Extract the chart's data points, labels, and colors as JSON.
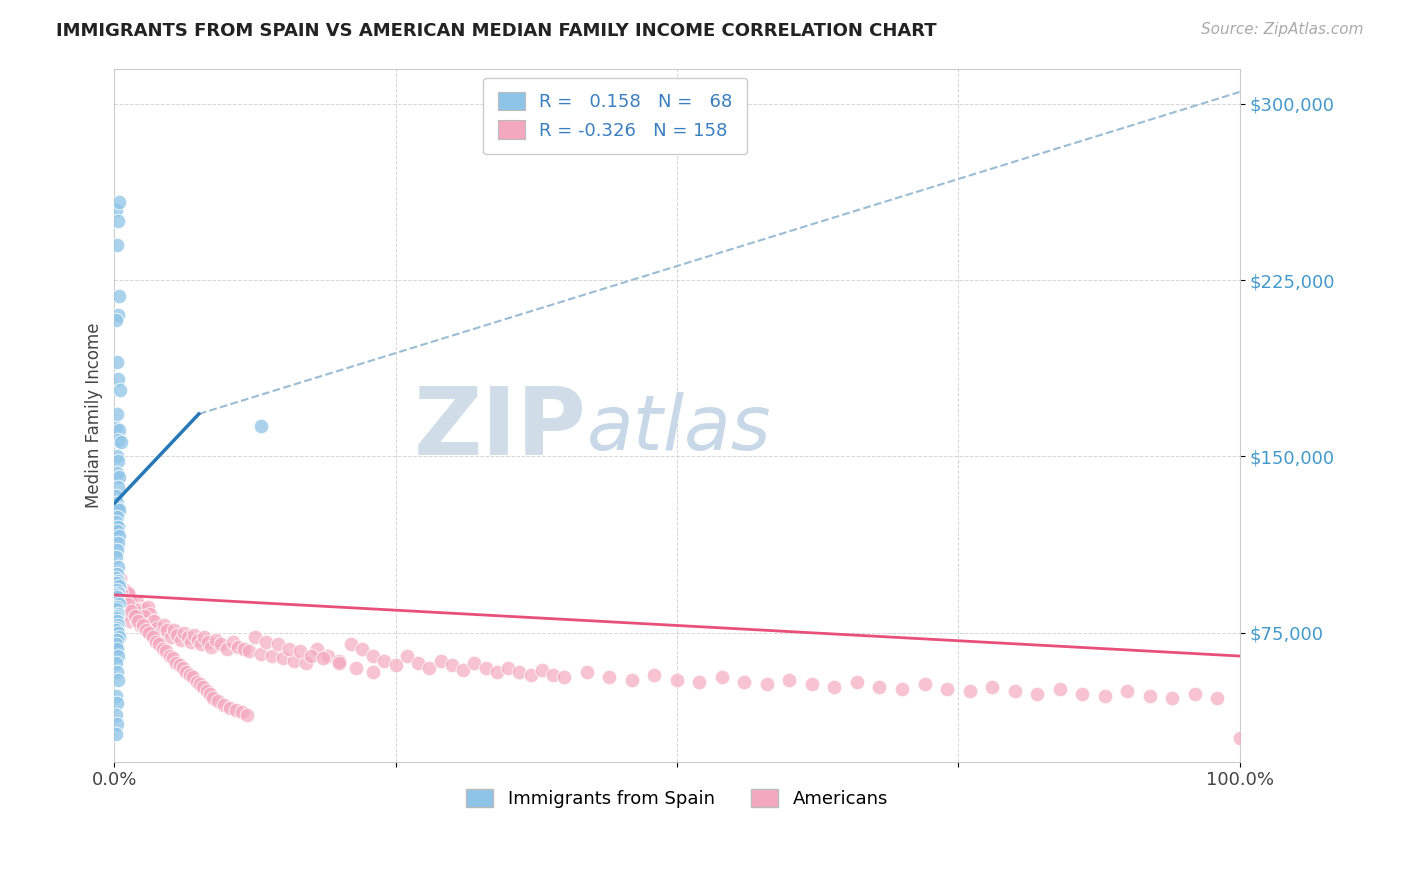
{
  "title": "IMMIGRANTS FROM SPAIN VS AMERICAN MEDIAN FAMILY INCOME CORRELATION CHART",
  "source": "Source: ZipAtlas.com",
  "ylabel": "Median Family Income",
  "yticks": [
    75000,
    150000,
    225000,
    300000
  ],
  "ytick_labels": [
    "$75,000",
    "$150,000",
    "$225,000",
    "$300,000"
  ],
  "ymin": 20000,
  "ymax": 315000,
  "xmin": 0.0,
  "xmax": 1.0,
  "blue_R": 0.158,
  "blue_N": 68,
  "pink_R": -0.326,
  "pink_N": 158,
  "blue_color": "#8ec4e8",
  "pink_color": "#f4a8c0",
  "blue_line_color": "#2878b8",
  "pink_line_color": "#e8507a",
  "dashed_line_color": "#9bbdd4",
  "watermark_zip": "ZIP",
  "watermark_atlas": "atlas",
  "watermark_color": "#dde8f0",
  "background_color": "#ffffff",
  "legend_text_color": "#3a7fbf",
  "blue_scatter_x": [
    0.001,
    0.003,
    0.004,
    0.002,
    0.004,
    0.003,
    0.001,
    0.002,
    0.003,
    0.005,
    0.002,
    0.001,
    0.004,
    0.003,
    0.006,
    0.002,
    0.003,
    0.002,
    0.004,
    0.003,
    0.001,
    0.002,
    0.003,
    0.004,
    0.002,
    0.001,
    0.003,
    0.002,
    0.004,
    0.003,
    0.002,
    0.001,
    0.003,
    0.002,
    0.001,
    0.003,
    0.002,
    0.004,
    0.002,
    0.003,
    0.001,
    0.002,
    0.003,
    0.004,
    0.002,
    0.001,
    0.003,
    0.002,
    0.001,
    0.002,
    0.003,
    0.002,
    0.001,
    0.003,
    0.004,
    0.002,
    0.001,
    0.002,
    0.003,
    0.001,
    0.002,
    0.003,
    0.001,
    0.002,
    0.001,
    0.13,
    0.002,
    0.001
  ],
  "blue_scatter_y": [
    255000,
    250000,
    258000,
    240000,
    218000,
    210000,
    208000,
    190000,
    183000,
    178000,
    168000,
    162000,
    161000,
    157000,
    156000,
    150000,
    148000,
    143000,
    141000,
    137000,
    133000,
    130000,
    128000,
    127000,
    124000,
    122000,
    120000,
    118000,
    116000,
    113000,
    110000,
    107000,
    103000,
    100000,
    98000,
    97000,
    96000,
    95000,
    93000,
    92000,
    91000,
    90000,
    88000,
    87000,
    86000,
    85000,
    83000,
    82000,
    81000,
    80000,
    78000,
    77000,
    76000,
    75000,
    73000,
    72000,
    70000,
    68000,
    65000,
    62000,
    58000,
    55000,
    48000,
    45000,
    40000,
    163000,
    36000,
    32000
  ],
  "pink_scatter_x": [
    0.001,
    0.003,
    0.005,
    0.007,
    0.009,
    0.011,
    0.013,
    0.015,
    0.002,
    0.004,
    0.006,
    0.008,
    0.01,
    0.012,
    0.014,
    0.016,
    0.018,
    0.02,
    0.022,
    0.024,
    0.026,
    0.028,
    0.03,
    0.032,
    0.034,
    0.036,
    0.003,
    0.005,
    0.008,
    0.011,
    0.014,
    0.017,
    0.02,
    0.023,
    0.026,
    0.029,
    0.032,
    0.035,
    0.038,
    0.041,
    0.044,
    0.047,
    0.05,
    0.053,
    0.056,
    0.059,
    0.062,
    0.065,
    0.068,
    0.071,
    0.074,
    0.077,
    0.08,
    0.083,
    0.086,
    0.09,
    0.095,
    0.1,
    0.105,
    0.11,
    0.115,
    0.12,
    0.13,
    0.14,
    0.15,
    0.16,
    0.17,
    0.18,
    0.19,
    0.2,
    0.21,
    0.22,
    0.23,
    0.24,
    0.25,
    0.26,
    0.27,
    0.28,
    0.29,
    0.3,
    0.31,
    0.32,
    0.33,
    0.34,
    0.35,
    0.36,
    0.37,
    0.38,
    0.39,
    0.4,
    0.42,
    0.44,
    0.46,
    0.48,
    0.5,
    0.52,
    0.54,
    0.56,
    0.58,
    0.6,
    0.62,
    0.64,
    0.66,
    0.68,
    0.7,
    0.72,
    0.74,
    0.76,
    0.78,
    0.8,
    0.82,
    0.84,
    0.86,
    0.88,
    0.9,
    0.92,
    0.94,
    0.96,
    0.98,
    1.0,
    0.004,
    0.006,
    0.009,
    0.012,
    0.015,
    0.018,
    0.021,
    0.025,
    0.028,
    0.031,
    0.034,
    0.037,
    0.04,
    0.043,
    0.046,
    0.049,
    0.052,
    0.055,
    0.058,
    0.061,
    0.064,
    0.067,
    0.07,
    0.073,
    0.076,
    0.079,
    0.082,
    0.085,
    0.088,
    0.092,
    0.097,
    0.103,
    0.108,
    0.113,
    0.118,
    0.125,
    0.135,
    0.145,
    0.155,
    0.165,
    0.175,
    0.185,
    0.2,
    0.215,
    0.23
  ],
  "pink_scatter_y": [
    100000,
    95000,
    98000,
    90000,
    93000,
    88000,
    91000,
    86000,
    96000,
    93000,
    90000,
    87000,
    84000,
    92000,
    88000,
    85000,
    83000,
    88000,
    85000,
    82000,
    85000,
    80000,
    86000,
    83000,
    80000,
    78000,
    90000,
    88000,
    85000,
    83000,
    80000,
    85000,
    80000,
    78000,
    82000,
    78000,
    76000,
    80000,
    77000,
    75000,
    78000,
    76000,
    73000,
    76000,
    74000,
    72000,
    75000,
    73000,
    71000,
    74000,
    72000,
    70000,
    73000,
    71000,
    69000,
    72000,
    70000,
    68000,
    71000,
    69000,
    68000,
    67000,
    66000,
    65000,
    64000,
    63000,
    62000,
    68000,
    65000,
    63000,
    70000,
    68000,
    65000,
    63000,
    61000,
    65000,
    62000,
    60000,
    63000,
    61000,
    59000,
    62000,
    60000,
    58000,
    60000,
    58000,
    57000,
    59000,
    57000,
    56000,
    58000,
    56000,
    55000,
    57000,
    55000,
    54000,
    56000,
    54000,
    53000,
    55000,
    53000,
    52000,
    54000,
    52000,
    51000,
    53000,
    51000,
    50000,
    52000,
    50000,
    49000,
    51000,
    49000,
    48000,
    50000,
    48000,
    47000,
    49000,
    47000,
    30000,
    95000,
    92000,
    89000,
    87000,
    84000,
    82000,
    80000,
    78000,
    76000,
    75000,
    73000,
    71000,
    70000,
    68000,
    67000,
    65000,
    64000,
    62000,
    61000,
    60000,
    58000,
    57000,
    56000,
    54000,
    53000,
    52000,
    50000,
    49000,
    47000,
    46000,
    44000,
    43000,
    42000,
    41000,
    40000,
    73000,
    71000,
    70000,
    68000,
    67000,
    65000,
    64000,
    62000,
    60000,
    58000
  ],
  "blue_line_x0": 0.0,
  "blue_line_x1": 0.075,
  "blue_line_y0": 130000,
  "blue_line_y1": 168000,
  "dash_line_x0": 0.075,
  "dash_line_x1": 1.0,
  "dash_line_y0": 168000,
  "dash_line_y1": 305000,
  "pink_line_x0": 0.0,
  "pink_line_x1": 1.0,
  "pink_line_y0": 91000,
  "pink_line_y1": 65000
}
